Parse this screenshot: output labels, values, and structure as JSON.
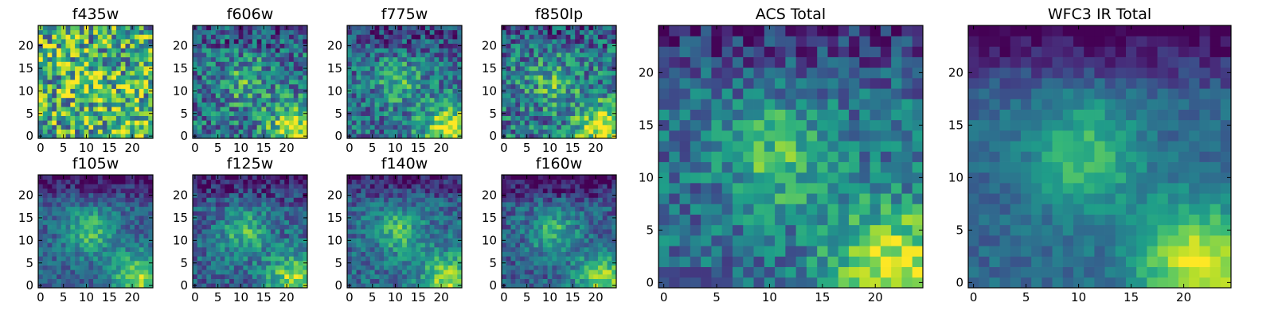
{
  "figure": {
    "colormap": "viridis",
    "colormap_stops": [
      "#440154",
      "#482878",
      "#3e4989",
      "#31688e",
      "#26828e",
      "#1f9e89",
      "#35b779",
      "#6ece58",
      "#b5de2b",
      "#fde725"
    ]
  },
  "chart_data": [
    {
      "type": "heatmap",
      "title": "f435w",
      "grid_size": 25,
      "x_ticks": [
        "0",
        "5",
        "10",
        "15",
        "20"
      ],
      "y_ticks": [
        "0",
        "5",
        "10",
        "15",
        "20"
      ],
      "xlim": [
        0,
        24
      ],
      "ylim": [
        0,
        24
      ],
      "pattern": {
        "base": 0.62,
        "blob": 0.15,
        "corner": 0.15,
        "top_dark": 0.05,
        "noise": 0.42,
        "seed": 11
      }
    },
    {
      "type": "heatmap",
      "title": "f606w",
      "grid_size": 25,
      "x_ticks": [
        "0",
        "5",
        "10",
        "15",
        "20"
      ],
      "y_ticks": [
        "0",
        "5",
        "10",
        "15",
        "20"
      ],
      "xlim": [
        0,
        24
      ],
      "ylim": [
        0,
        24
      ],
      "pattern": {
        "base": 0.38,
        "blob": 0.25,
        "corner": 0.55,
        "top_dark": 0.15,
        "noise": 0.3,
        "seed": 23
      }
    },
    {
      "type": "heatmap",
      "title": "f775w",
      "grid_size": 25,
      "x_ticks": [
        "0",
        "5",
        "10",
        "15",
        "20"
      ],
      "y_ticks": [
        "0",
        "5",
        "10",
        "15",
        "20"
      ],
      "xlim": [
        0,
        24
      ],
      "ylim": [
        0,
        24
      ],
      "pattern": {
        "base": 0.36,
        "blob": 0.28,
        "corner": 0.58,
        "top_dark": 0.18,
        "noise": 0.26,
        "seed": 37
      }
    },
    {
      "type": "heatmap",
      "title": "f850lp",
      "grid_size": 25,
      "x_ticks": [
        "0",
        "5",
        "10",
        "15",
        "20"
      ],
      "y_ticks": [
        "0",
        "5",
        "10",
        "15",
        "20"
      ],
      "xlim": [
        0,
        24
      ],
      "ylim": [
        0,
        24
      ],
      "pattern": {
        "base": 0.4,
        "blob": 0.26,
        "corner": 0.55,
        "top_dark": 0.15,
        "noise": 0.3,
        "seed": 41
      }
    },
    {
      "type": "heatmap",
      "title": "f105w",
      "grid_size": 25,
      "x_ticks": [
        "0",
        "5",
        "10",
        "15",
        "20"
      ],
      "y_ticks": [
        "0",
        "5",
        "10",
        "15",
        "20"
      ],
      "xlim": [
        0,
        24
      ],
      "ylim": [
        0,
        24
      ],
      "pattern": {
        "base": 0.32,
        "blob": 0.38,
        "corner": 0.52,
        "top_dark": 0.28,
        "noise": 0.16,
        "seed": 53
      }
    },
    {
      "type": "heatmap",
      "title": "f125w",
      "grid_size": 25,
      "x_ticks": [
        "0",
        "5",
        "10",
        "15",
        "20"
      ],
      "y_ticks": [
        "0",
        "5",
        "10",
        "15",
        "20"
      ],
      "xlim": [
        0,
        24
      ],
      "ylim": [
        0,
        24
      ],
      "pattern": {
        "base": 0.32,
        "blob": 0.36,
        "corner": 0.52,
        "top_dark": 0.3,
        "noise": 0.2,
        "seed": 67
      }
    },
    {
      "type": "heatmap",
      "title": "f140w",
      "grid_size": 25,
      "x_ticks": [
        "0",
        "5",
        "10",
        "15",
        "20"
      ],
      "y_ticks": [
        "0",
        "5",
        "10",
        "15",
        "20"
      ],
      "xlim": [
        0,
        24
      ],
      "ylim": [
        0,
        24
      ],
      "pattern": {
        "base": 0.34,
        "blob": 0.36,
        "corner": 0.52,
        "top_dark": 0.26,
        "noise": 0.18,
        "seed": 71
      }
    },
    {
      "type": "heatmap",
      "title": "f160w",
      "grid_size": 25,
      "x_ticks": [
        "0",
        "5",
        "10",
        "15",
        "20"
      ],
      "y_ticks": [
        "0",
        "5",
        "10",
        "15",
        "20"
      ],
      "xlim": [
        0,
        24
      ],
      "ylim": [
        0,
        24
      ],
      "pattern": {
        "base": 0.3,
        "blob": 0.36,
        "corner": 0.55,
        "top_dark": 0.32,
        "noise": 0.18,
        "seed": 83
      }
    },
    {
      "type": "heatmap",
      "title": "ACS Total",
      "grid_size": 25,
      "x_ticks": [
        "0",
        "5",
        "10",
        "15",
        "20"
      ],
      "y_ticks": [
        "0",
        "5",
        "10",
        "15",
        "20"
      ],
      "xlim": [
        0,
        24
      ],
      "ylim": [
        0,
        24
      ],
      "pattern": {
        "base": 0.36,
        "blob": 0.35,
        "corner": 0.6,
        "top_dark": 0.22,
        "noise": 0.2,
        "seed": 97
      }
    },
    {
      "type": "heatmap",
      "title": "WFC3 IR Total",
      "grid_size": 25,
      "x_ticks": [
        "0",
        "5",
        "10",
        "15",
        "20"
      ],
      "y_ticks": [
        "0",
        "5",
        "10",
        "15",
        "20"
      ],
      "xlim": [
        0,
        24
      ],
      "ylim": [
        0,
        24
      ],
      "pattern": {
        "base": 0.34,
        "blob": 0.36,
        "corner": 0.62,
        "top_dark": 0.36,
        "noise": 0.1,
        "seed": 101
      }
    }
  ]
}
